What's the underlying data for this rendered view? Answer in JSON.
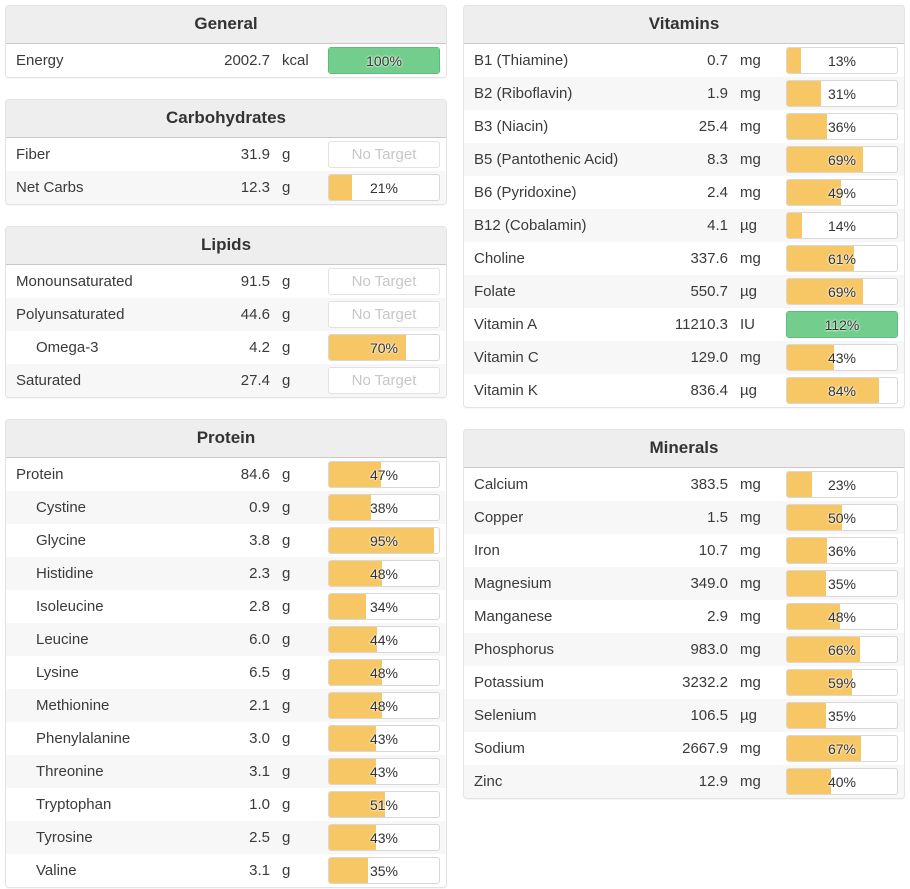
{
  "colors": {
    "fill_yellow": "#f6c764",
    "fill_green": "#73ce8d",
    "green_border": "#5eba7d",
    "no_target_text": "#c7c7c7"
  },
  "no_target_label": "No Target",
  "columns": [
    {
      "id": "left",
      "panels": [
        {
          "title": "General",
          "rows": [
            {
              "label": "Energy",
              "value": "2002.7",
              "unit": "kcal",
              "percent": 100,
              "display": "100%",
              "status": "green",
              "indent": false
            }
          ]
        },
        {
          "title": "Carbohydrates",
          "rows": [
            {
              "label": "Fiber",
              "value": "31.9",
              "unit": "g",
              "percent": null,
              "display": "No Target",
              "status": "none",
              "indent": false
            },
            {
              "label": "Net Carbs",
              "value": "12.3",
              "unit": "g",
              "percent": 21,
              "display": "21%",
              "status": "yellow",
              "indent": false
            }
          ]
        },
        {
          "title": "Lipids",
          "rows": [
            {
              "label": "Monounsaturated",
              "value": "91.5",
              "unit": "g",
              "percent": null,
              "display": "No Target",
              "status": "none",
              "indent": false
            },
            {
              "label": "Polyunsaturated",
              "value": "44.6",
              "unit": "g",
              "percent": null,
              "display": "No Target",
              "status": "none",
              "indent": false
            },
            {
              "label": "Omega-3",
              "value": "4.2",
              "unit": "g",
              "percent": 70,
              "display": "70%",
              "status": "yellow",
              "indent": true
            },
            {
              "label": "Saturated",
              "value": "27.4",
              "unit": "g",
              "percent": null,
              "display": "No Target",
              "status": "none",
              "indent": false
            }
          ]
        },
        {
          "title": "Protein",
          "rows": [
            {
              "label": "Protein",
              "value": "84.6",
              "unit": "g",
              "percent": 47,
              "display": "47%",
              "status": "yellow",
              "indent": false
            },
            {
              "label": "Cystine",
              "value": "0.9",
              "unit": "g",
              "percent": 38,
              "display": "38%",
              "status": "yellow",
              "indent": true
            },
            {
              "label": "Glycine",
              "value": "3.8",
              "unit": "g",
              "percent": 95,
              "display": "95%",
              "status": "yellow",
              "indent": true
            },
            {
              "label": "Histidine",
              "value": "2.3",
              "unit": "g",
              "percent": 48,
              "display": "48%",
              "status": "yellow",
              "indent": true
            },
            {
              "label": "Isoleucine",
              "value": "2.8",
              "unit": "g",
              "percent": 34,
              "display": "34%",
              "status": "yellow",
              "indent": true
            },
            {
              "label": "Leucine",
              "value": "6.0",
              "unit": "g",
              "percent": 44,
              "display": "44%",
              "status": "yellow",
              "indent": true
            },
            {
              "label": "Lysine",
              "value": "6.5",
              "unit": "g",
              "percent": 48,
              "display": "48%",
              "status": "yellow",
              "indent": true
            },
            {
              "label": "Methionine",
              "value": "2.1",
              "unit": "g",
              "percent": 48,
              "display": "48%",
              "status": "yellow",
              "indent": true
            },
            {
              "label": "Phenylalanine",
              "value": "3.0",
              "unit": "g",
              "percent": 43,
              "display": "43%",
              "status": "yellow",
              "indent": true
            },
            {
              "label": "Threonine",
              "value": "3.1",
              "unit": "g",
              "percent": 43,
              "display": "43%",
              "status": "yellow",
              "indent": true
            },
            {
              "label": "Tryptophan",
              "value": "1.0",
              "unit": "g",
              "percent": 51,
              "display": "51%",
              "status": "yellow",
              "indent": true
            },
            {
              "label": "Tyrosine",
              "value": "2.5",
              "unit": "g",
              "percent": 43,
              "display": "43%",
              "status": "yellow",
              "indent": true
            },
            {
              "label": "Valine",
              "value": "3.1",
              "unit": "g",
              "percent": 35,
              "display": "35%",
              "status": "yellow",
              "indent": true
            }
          ]
        }
      ]
    },
    {
      "id": "right",
      "panels": [
        {
          "title": "Vitamins",
          "rows": [
            {
              "label": "B1 (Thiamine)",
              "value": "0.7",
              "unit": "mg",
              "percent": 13,
              "display": "13%",
              "status": "yellow",
              "indent": false
            },
            {
              "label": "B2 (Riboflavin)",
              "value": "1.9",
              "unit": "mg",
              "percent": 31,
              "display": "31%",
              "status": "yellow",
              "indent": false
            },
            {
              "label": "B3 (Niacin)",
              "value": "25.4",
              "unit": "mg",
              "percent": 36,
              "display": "36%",
              "status": "yellow",
              "indent": false
            },
            {
              "label": "B5 (Pantothenic Acid)",
              "value": "8.3",
              "unit": "mg",
              "percent": 69,
              "display": "69%",
              "status": "yellow",
              "indent": false
            },
            {
              "label": "B6 (Pyridoxine)",
              "value": "2.4",
              "unit": "mg",
              "percent": 49,
              "display": "49%",
              "status": "yellow",
              "indent": false
            },
            {
              "label": "B12 (Cobalamin)",
              "value": "4.1",
              "unit": "µg",
              "percent": 14,
              "display": "14%",
              "status": "yellow",
              "indent": false
            },
            {
              "label": "Choline",
              "value": "337.6",
              "unit": "mg",
              "percent": 61,
              "display": "61%",
              "status": "yellow",
              "indent": false
            },
            {
              "label": "Folate",
              "value": "550.7",
              "unit": "µg",
              "percent": 69,
              "display": "69%",
              "status": "yellow",
              "indent": false
            },
            {
              "label": "Vitamin A",
              "value": "11210.3",
              "unit": "IU",
              "percent": 112,
              "display": "112%",
              "status": "green",
              "indent": false
            },
            {
              "label": "Vitamin C",
              "value": "129.0",
              "unit": "mg",
              "percent": 43,
              "display": "43%",
              "status": "yellow",
              "indent": false
            },
            {
              "label": "Vitamin K",
              "value": "836.4",
              "unit": "µg",
              "percent": 84,
              "display": "84%",
              "status": "yellow",
              "indent": false
            }
          ]
        },
        {
          "title": "Minerals",
          "rows": [
            {
              "label": "Calcium",
              "value": "383.5",
              "unit": "mg",
              "percent": 23,
              "display": "23%",
              "status": "yellow",
              "indent": false
            },
            {
              "label": "Copper",
              "value": "1.5",
              "unit": "mg",
              "percent": 50,
              "display": "50%",
              "status": "yellow",
              "indent": false
            },
            {
              "label": "Iron",
              "value": "10.7",
              "unit": "mg",
              "percent": 36,
              "display": "36%",
              "status": "yellow",
              "indent": false
            },
            {
              "label": "Magnesium",
              "value": "349.0",
              "unit": "mg",
              "percent": 35,
              "display": "35%",
              "status": "yellow",
              "indent": false
            },
            {
              "label": "Manganese",
              "value": "2.9",
              "unit": "mg",
              "percent": 48,
              "display": "48%",
              "status": "yellow",
              "indent": false
            },
            {
              "label": "Phosphorus",
              "value": "983.0",
              "unit": "mg",
              "percent": 66,
              "display": "66%",
              "status": "yellow",
              "indent": false
            },
            {
              "label": "Potassium",
              "value": "3232.2",
              "unit": "mg",
              "percent": 59,
              "display": "59%",
              "status": "yellow",
              "indent": false
            },
            {
              "label": "Selenium",
              "value": "106.5",
              "unit": "µg",
              "percent": 35,
              "display": "35%",
              "status": "yellow",
              "indent": false
            },
            {
              "label": "Sodium",
              "value": "2667.9",
              "unit": "mg",
              "percent": 67,
              "display": "67%",
              "status": "yellow",
              "indent": false
            },
            {
              "label": "Zinc",
              "value": "12.9",
              "unit": "mg",
              "percent": 40,
              "display": "40%",
              "status": "yellow",
              "indent": false
            }
          ]
        }
      ]
    }
  ]
}
